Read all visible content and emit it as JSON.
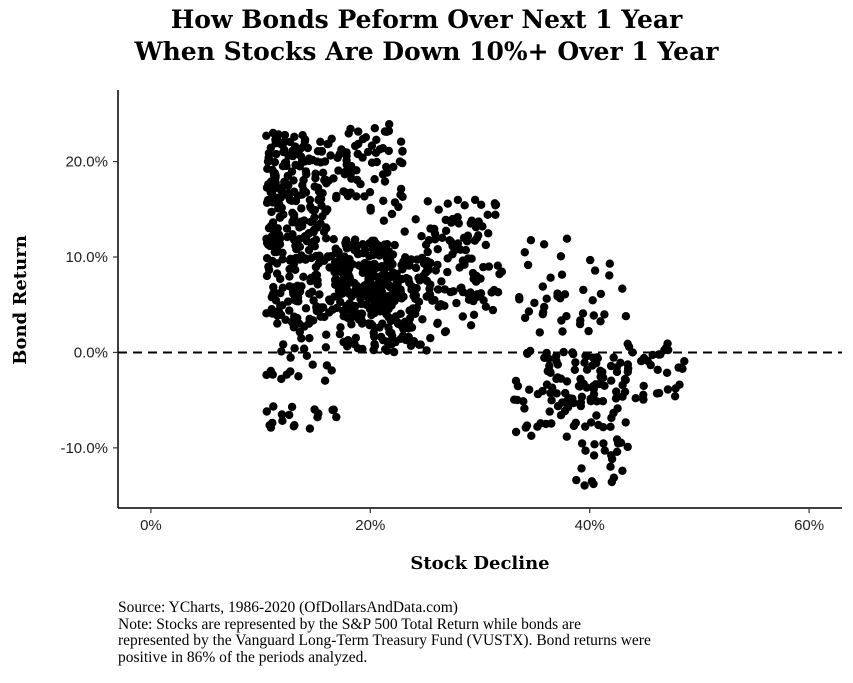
{
  "chart_data": {
    "type": "scatter",
    "title_lines": [
      "How Bonds Peform Over Next 1 Year",
      "When Stocks Are Down 10%+ Over 1 Year"
    ],
    "xlabel": "Stock Decline",
    "ylabel": "Bond Return",
    "xlim": [
      -0.03,
      0.63
    ],
    "ylim": [
      -0.163,
      0.275
    ],
    "x_ticks": [
      0,
      0.2,
      0.4,
      0.6
    ],
    "x_tick_labels": [
      "0%",
      "20%",
      "40%",
      "60%"
    ],
    "y_ticks": [
      -0.1,
      0,
      0.1,
      0.2
    ],
    "y_tick_labels": [
      "-10.0%",
      "0.0%",
      "10.0%",
      "20.0%"
    ],
    "reference_line": {
      "y": 0,
      "style": "dashed"
    },
    "grid": false,
    "point_color": "#000000",
    "clusters": [
      {
        "x": [
          0.105,
          0.16
        ],
        "y": [
          0.12,
          0.23
        ],
        "n": 170
      },
      {
        "x": [
          0.16,
          0.23
        ],
        "y": [
          0.14,
          0.24
        ],
        "n": 75
      },
      {
        "x": [
          0.105,
          0.22
        ],
        "y": [
          0.03,
          0.12
        ],
        "n": 260
      },
      {
        "x": [
          0.17,
          0.255
        ],
        "y": [
          0.0,
          0.1
        ],
        "n": 150
      },
      {
        "x": [
          0.2,
          0.3
        ],
        "y": [
          0.02,
          0.14
        ],
        "n": 110
      },
      {
        "x": [
          0.25,
          0.32
        ],
        "y": [
          0.08,
          0.16
        ],
        "n": 45
      },
      {
        "x": [
          0.29,
          0.32
        ],
        "y": [
          0.04,
          0.08
        ],
        "n": 12
      },
      {
        "x": [
          0.105,
          0.17
        ],
        "y": [
          -0.03,
          0.03
        ],
        "n": 24
      },
      {
        "x": [
          0.105,
          0.17
        ],
        "y": [
          -0.08,
          -0.055
        ],
        "n": 18
      },
      {
        "x": [
          0.33,
          0.38
        ],
        "y": [
          -0.1,
          0.12
        ],
        "n": 45
      },
      {
        "x": [
          0.355,
          0.435
        ],
        "y": [
          -0.08,
          0.0
        ],
        "n": 90
      },
      {
        "x": [
          0.38,
          0.435
        ],
        "y": [
          -0.14,
          -0.09
        ],
        "n": 22
      },
      {
        "x": [
          0.37,
          0.44
        ],
        "y": [
          0.02,
          0.1
        ],
        "n": 22
      },
      {
        "x": [
          0.43,
          0.49
        ],
        "y": [
          -0.05,
          0.01
        ],
        "n": 32
      }
    ]
  },
  "caption": {
    "source": "Source:  YCharts, 1986-2020 (OfDollarsAndData.com)",
    "note_lines": [
      "Note: Stocks are represented by the S&P 500 Total Return while bonds are",
      "represented by the Vanguard Long-Term Treasury Fund (VUSTX). Bond returns were",
      "positive in 86% of the periods analyzed."
    ]
  }
}
